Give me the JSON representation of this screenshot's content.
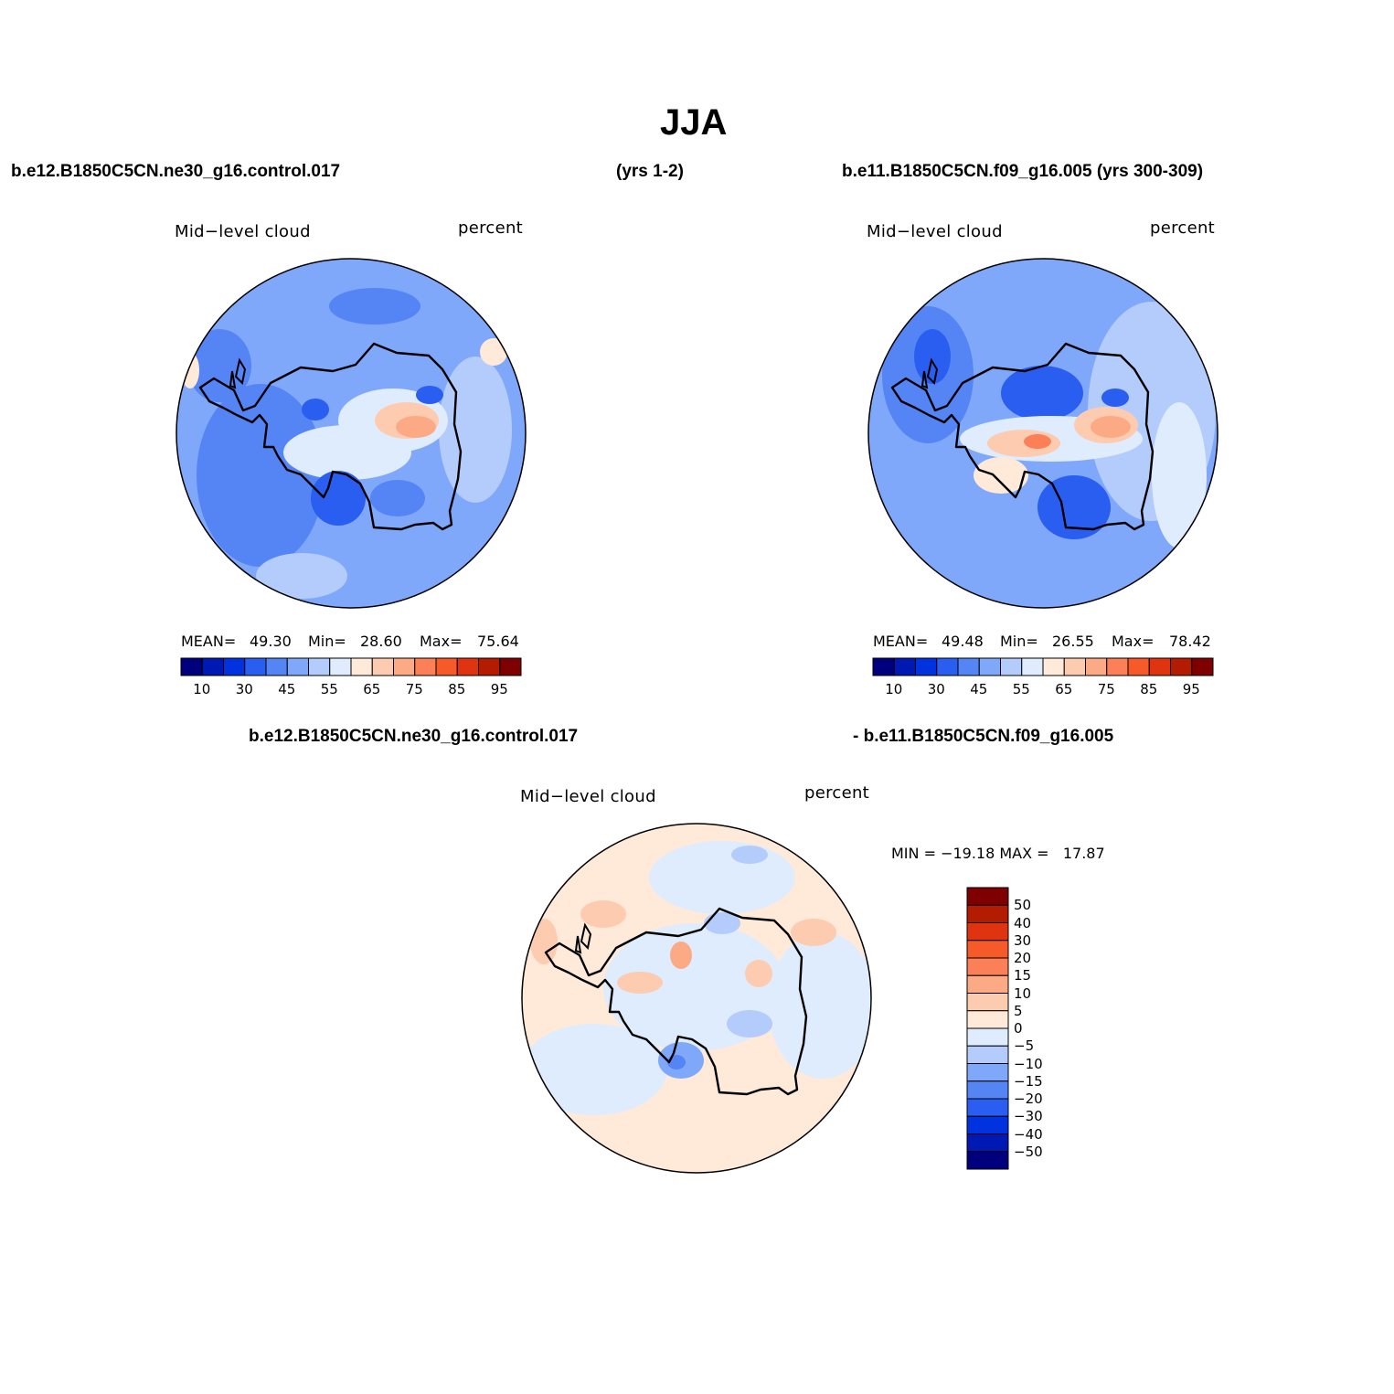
{
  "title": "JJA",
  "header": {
    "case1": "b.e12.B1850C5CN.ne30_g16.control.017",
    "years1": "(yrs 1-2)",
    "case2": "b.e11.B1850C5CN.f09_g16.005 (yrs 300-309)",
    "diff_left": "b.e12.B1850C5CN.ne30_g16.control.017",
    "diff_right": "- b.e11.B1850C5CN.f09_g16.005"
  },
  "panels": [
    {
      "variable": "Mid−level cloud",
      "units": "percent",
      "mean_label": "MEAN=",
      "mean_value": "49.30",
      "min_label": "Min=",
      "min_value": "28.60",
      "max_label": "Max=",
      "max_value": "75.64"
    },
    {
      "variable": "Mid−level cloud",
      "units": "percent",
      "mean_label": "MEAN=",
      "mean_value": "49.48",
      "min_label": "Min=",
      "min_value": "26.55",
      "max_label": "Max=",
      "max_value": "78.42"
    },
    {
      "variable": "Mid−level cloud",
      "units": "percent",
      "minmax": "MIN = −19.18 MAX =   17.87"
    }
  ],
  "colorbar_main": {
    "labels": [
      "10",
      "30",
      "45",
      "55",
      "65",
      "75",
      "85",
      "95"
    ],
    "colors": [
      "#00007f",
      "#0019b3",
      "#0032e0",
      "#2a5ef0",
      "#5585f5",
      "#80a8fa",
      "#b3ccfc",
      "#dfecfe",
      "#ffe9d9",
      "#fdcbb0",
      "#fcaa86",
      "#fb8058",
      "#f55a28",
      "#e03310",
      "#b31c00",
      "#7f0000"
    ]
  },
  "colorbar_diff": {
    "labels": [
      "50",
      "40",
      "30",
      "20",
      "15",
      "10",
      "5",
      "0",
      "−5",
      "−10",
      "−15",
      "−20",
      "−30",
      "−40",
      "−50"
    ],
    "colors": [
      "#7f0000",
      "#b31c00",
      "#e03310",
      "#f55a28",
      "#fb8058",
      "#fcaa86",
      "#fdcbb0",
      "#ffe9d9",
      "#dfecfe",
      "#b3ccfc",
      "#80a8fa",
      "#5585f5",
      "#2a5ef0",
      "#0032e0",
      "#0019b3",
      "#00007f"
    ]
  }
}
